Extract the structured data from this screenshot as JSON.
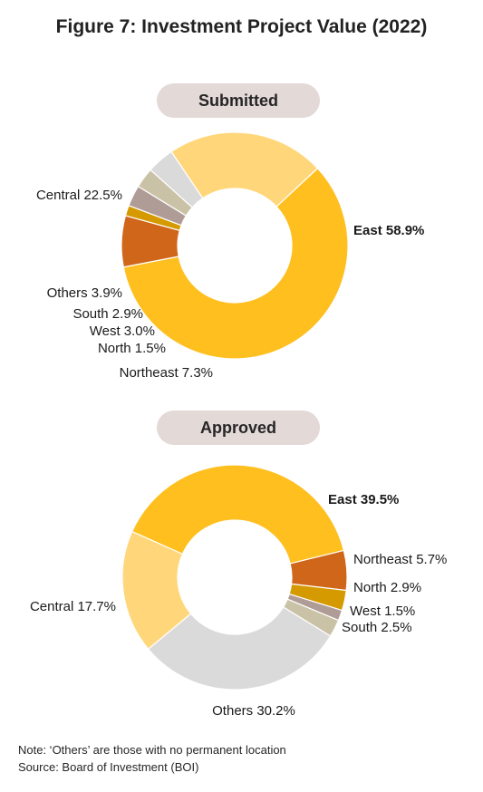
{
  "title": "Figure 7: Investment Project Value (2022)",
  "chart_data": [
    {
      "type": "pie",
      "variant": "donut",
      "title": "Submitted",
      "start_angle_deg": 47,
      "slices": [
        {
          "name": "East",
          "value": 58.9,
          "label": "East 58.9%",
          "color": "#FEBF1F",
          "label_bold": true
        },
        {
          "name": "Northeast",
          "value": 7.3,
          "label": "Northeast 7.3%",
          "color": "#D0661A"
        },
        {
          "name": "North",
          "value": 1.5,
          "label": "North 1.5%",
          "color": "#D59A00"
        },
        {
          "name": "West",
          "value": 3.0,
          "label": "West 3.0%",
          "color": "#B09C96"
        },
        {
          "name": "South",
          "value": 2.9,
          "label": "South 2.9%",
          "color": "#C9C2A6"
        },
        {
          "name": "Others",
          "value": 3.9,
          "label": "Others 3.9%",
          "color": "#DADADA"
        },
        {
          "name": "Central",
          "value": 22.5,
          "label": "Central 22.5%",
          "color": "#FFD77A"
        }
      ]
    },
    {
      "type": "pie",
      "variant": "donut",
      "title": "Approved",
      "start_angle_deg": -66,
      "slices": [
        {
          "name": "East",
          "value": 39.5,
          "label": "East 39.5%",
          "color": "#FEBF1F",
          "label_bold": true
        },
        {
          "name": "Northeast",
          "value": 5.7,
          "label": "Northeast 5.7%",
          "color": "#D0661A"
        },
        {
          "name": "North",
          "value": 2.9,
          "label": "North 2.9%",
          "color": "#D59A00"
        },
        {
          "name": "West",
          "value": 1.5,
          "label": "West 1.5%",
          "color": "#B09C96"
        },
        {
          "name": "South",
          "value": 2.5,
          "label": "South 2.5%",
          "color": "#C9C2A6"
        },
        {
          "name": "Others",
          "value": 30.2,
          "label": "Others 30.2%",
          "color": "#DADADA"
        },
        {
          "name": "Central",
          "value": 17.7,
          "label": "Central 17.7%",
          "color": "#FFD77A"
        }
      ]
    }
  ],
  "notes": {
    "note": "Note: ‘Others’ are those with no permanent location",
    "source": "Source: Board of Investment (BOI)"
  }
}
